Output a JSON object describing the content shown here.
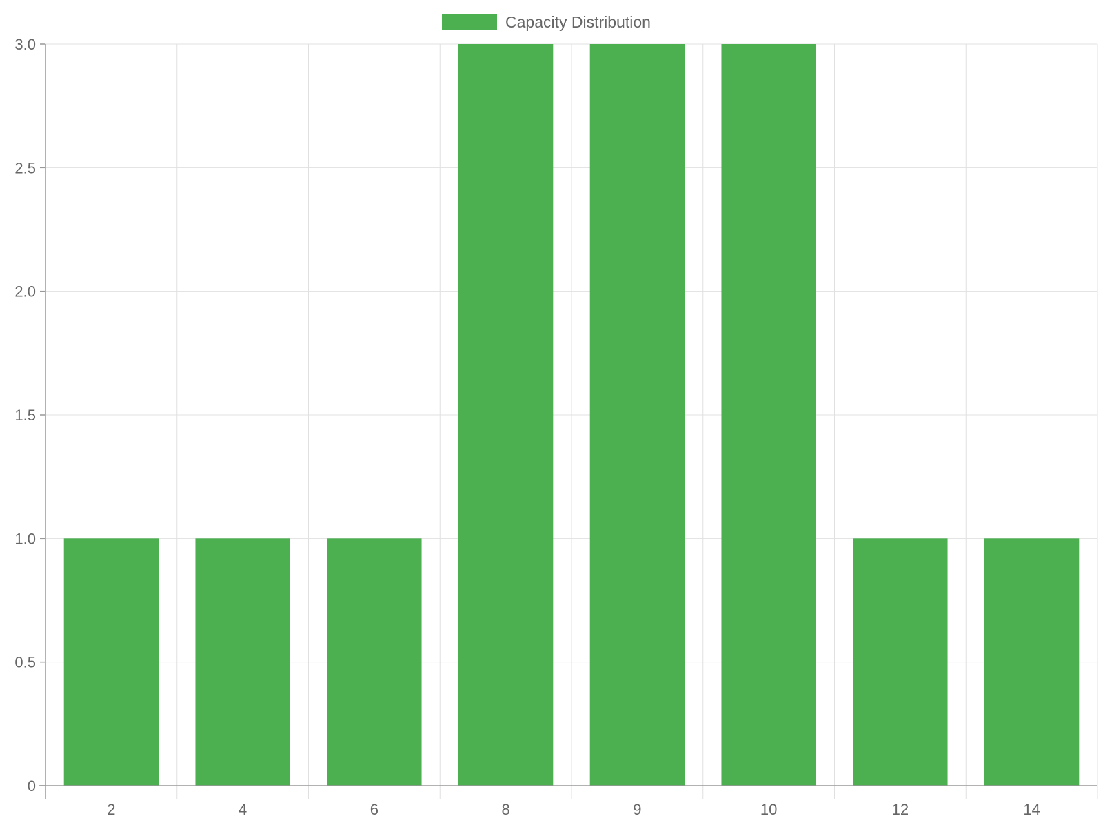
{
  "chart_data": {
    "type": "bar",
    "categories": [
      "2",
      "4",
      "6",
      "8",
      "9",
      "10",
      "12",
      "14"
    ],
    "series": [
      {
        "name": "Capacity Distribution",
        "values": [
          1,
          1,
          1,
          3,
          3,
          3,
          1,
          1
        ],
        "color": "#4caf50"
      }
    ],
    "ylim": [
      0,
      3
    ],
    "yticks": [
      "0",
      "0.5",
      "1.0",
      "1.5",
      "2.0",
      "2.5",
      "3.0"
    ],
    "yticks_values": [
      0,
      0.5,
      1,
      1.5,
      2,
      2.5,
      3
    ],
    "grid": true,
    "legend_position": "top-center",
    "colors": {
      "grid": "#e0e0e0",
      "axis": "#999999",
      "text": "#666666"
    }
  }
}
